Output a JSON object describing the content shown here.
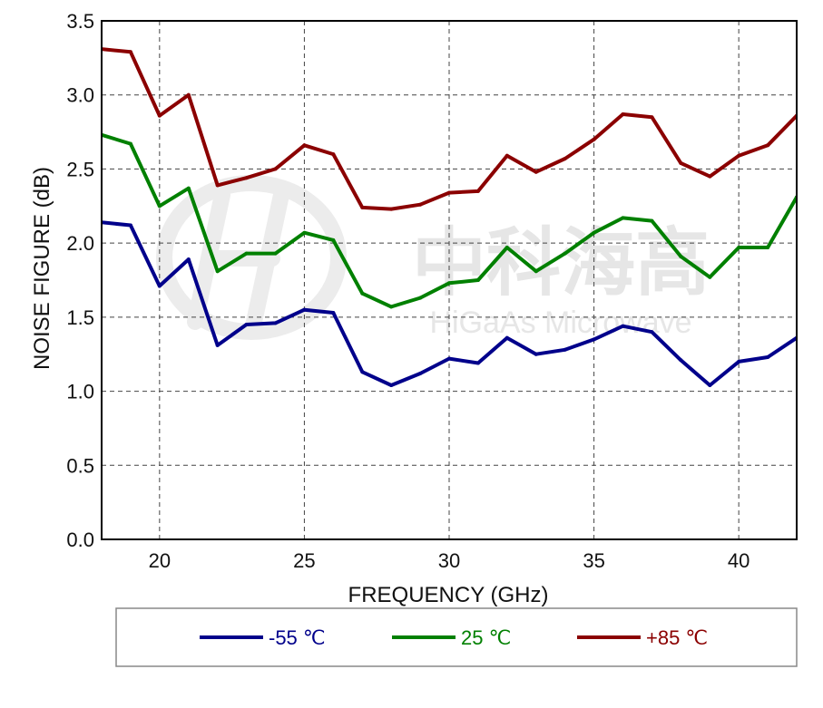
{
  "chart_data": {
    "type": "line",
    "xlabel": "FREQUENCY (GHz)",
    "ylabel": "NOISE FIGURE (dB)",
    "xlim": [
      18,
      42
    ],
    "ylim": [
      0.0,
      3.5
    ],
    "xticks": [
      20,
      25,
      30,
      35,
      40
    ],
    "yticks": [
      0.0,
      0.5,
      1.0,
      1.5,
      2.0,
      2.5,
      3.0,
      3.5
    ],
    "yticklabels": [
      "0.0",
      "0.5",
      "1.0",
      "1.5",
      "2.0",
      "2.5",
      "3.0",
      "3.5"
    ],
    "grid": true,
    "x": [
      18,
      19,
      20,
      21,
      22,
      23,
      24,
      25,
      26,
      27,
      28,
      29,
      30,
      31,
      32,
      33,
      34,
      35,
      36,
      37,
      38,
      39,
      40,
      41,
      42
    ],
    "series": [
      {
        "name": "-55 ℃",
        "color": "#00008b",
        "values": [
          2.14,
          2.12,
          1.71,
          1.89,
          1.31,
          1.45,
          1.46,
          1.55,
          1.53,
          1.13,
          1.04,
          1.12,
          1.22,
          1.19,
          1.36,
          1.25,
          1.28,
          1.35,
          1.44,
          1.4,
          1.21,
          1.04,
          1.2,
          1.23,
          1.36
        ]
      },
      {
        "name": "25 ℃",
        "color": "#008000",
        "values": [
          2.73,
          2.67,
          2.25,
          2.37,
          1.81,
          1.93,
          1.93,
          2.07,
          2.02,
          1.66,
          1.57,
          1.63,
          1.73,
          1.75,
          1.97,
          1.81,
          1.93,
          2.07,
          2.17,
          2.15,
          1.91,
          1.77,
          1.97,
          1.97,
          2.31
        ]
      },
      {
        "name": "+85 ℃",
        "color": "#8b0000",
        "values": [
          3.31,
          3.29,
          2.86,
          3.0,
          2.39,
          2.44,
          2.5,
          2.66,
          2.6,
          2.24,
          2.23,
          2.26,
          2.34,
          2.35,
          2.59,
          2.48,
          2.57,
          2.7,
          2.87,
          2.85,
          2.54,
          2.45,
          2.59,
          2.66,
          2.86
        ]
      }
    ],
    "legend": {
      "placement": "bottom"
    }
  },
  "watermark": {
    "title": "中科海高",
    "subtitle": "HiGaAs Microwave"
  }
}
